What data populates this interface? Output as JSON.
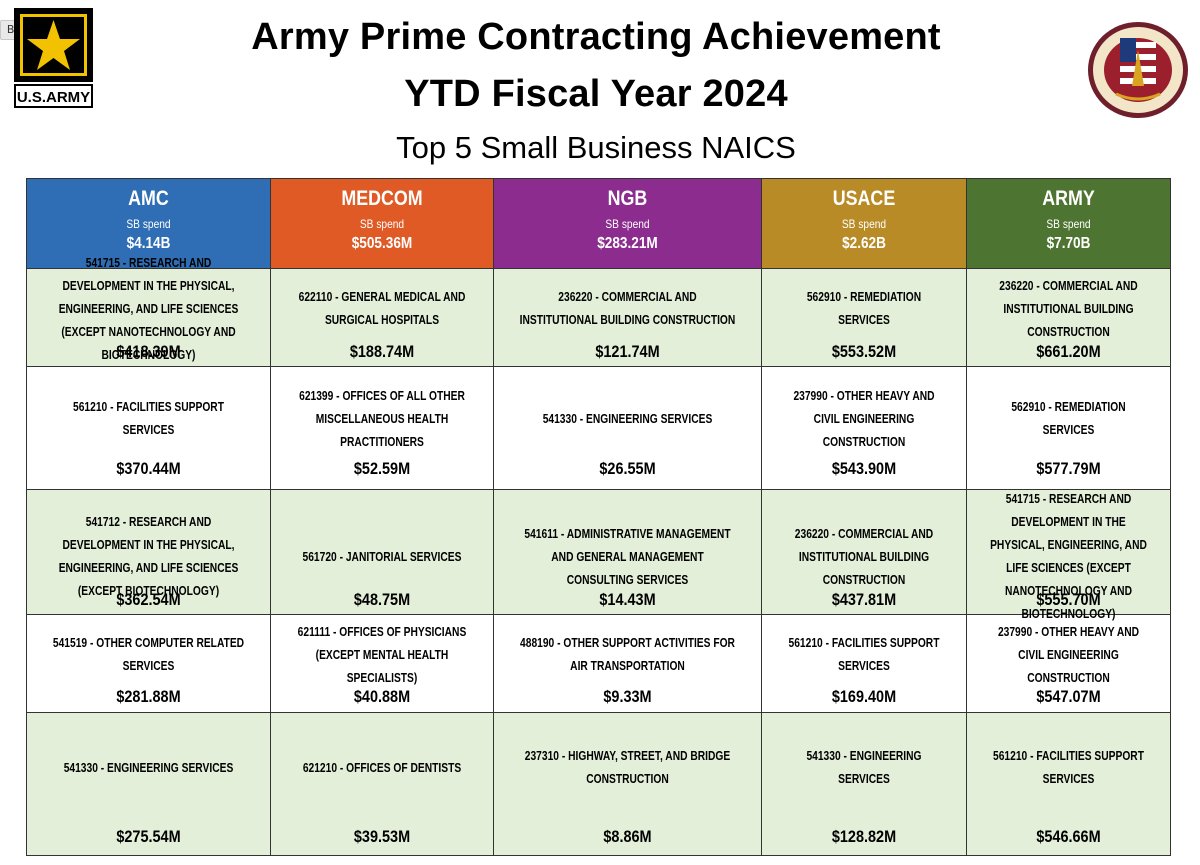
{
  "tooltip": "Bold",
  "logo": {
    "text": "U.S.ARMY",
    "seal_text": "DEPARTMENT OF THE ARMY · SMALL BUSINESS PROGRAMS"
  },
  "title_line1": "Army Prime Contracting Achievement",
  "title_line2": "YTD Fiscal Year 2024",
  "subtitle": "Top 5 Small Business NAICS",
  "colors": {
    "AMC": "#2f6eb5",
    "MEDCOM": "#e05a26",
    "NGB": "#8b2c8e",
    "USACE": "#b98b27",
    "ARMY": "#4e7431",
    "green_row": "#e3efd9"
  },
  "columns": [
    {
      "name": "AMC",
      "label": "SB spend",
      "amount": "$4.14B"
    },
    {
      "name": "MEDCOM",
      "label": "SB spend",
      "amount": "$505.36M"
    },
    {
      "name": "NGB",
      "label": "SB spend",
      "amount": "$283.21M"
    },
    {
      "name": "USACE",
      "label": "SB spend",
      "amount": "$2.62B"
    },
    {
      "name": "ARMY",
      "label": "SB spend",
      "amount": "$7.70B"
    }
  ],
  "rows": [
    [
      {
        "naics": "541715 - RESEARCH AND DEVELOPMENT IN THE PHYSICAL, ENGINEERING, AND LIFE SCIENCES (EXCEPT NANOTECHNOLOGY AND BIOTECHNOLOGY)",
        "amount": "$418.39M"
      },
      {
        "naics": "622110 - GENERAL MEDICAL AND SURGICAL HOSPITALS",
        "amount": "$188.74M"
      },
      {
        "naics": "236220 - COMMERCIAL AND INSTITUTIONAL BUILDING CONSTRUCTION",
        "amount": "$121.74M"
      },
      {
        "naics": "562910 - REMEDIATION SERVICES",
        "amount": "$553.52M"
      },
      {
        "naics": "236220 - COMMERCIAL AND INSTITUTIONAL BUILDING CONSTRUCTION",
        "amount": "$661.20M"
      }
    ],
    [
      {
        "naics": "561210 - FACILITIES SUPPORT SERVICES",
        "amount": "$370.44M"
      },
      {
        "naics": "621399 - OFFICES OF ALL OTHER MISCELLANEOUS HEALTH PRACTITIONERS",
        "amount": "$52.59M"
      },
      {
        "naics": "541330 - ENGINEERING SERVICES",
        "amount": "$26.55M"
      },
      {
        "naics": "237990 - OTHER HEAVY AND CIVIL ENGINEERING CONSTRUCTION",
        "amount": "$543.90M"
      },
      {
        "naics": "562910 - REMEDIATION SERVICES",
        "amount": "$577.79M"
      }
    ],
    [
      {
        "naics": "541712 - RESEARCH AND DEVELOPMENT IN THE PHYSICAL, ENGINEERING, AND LIFE SCIENCES (EXCEPT BIOTECHNOLOGY)",
        "amount": "$362.54M"
      },
      {
        "naics": "561720 - JANITORIAL SERVICES",
        "amount": "$48.75M"
      },
      {
        "naics": "541611 - ADMINISTRATIVE MANAGEMENT AND GENERAL MANAGEMENT CONSULTING SERVICES",
        "amount": "$14.43M"
      },
      {
        "naics": "236220 - COMMERCIAL AND INSTITUTIONAL BUILDING CONSTRUCTION",
        "amount": "$437.81M"
      },
      {
        "naics": "541715 - RESEARCH AND DEVELOPMENT IN THE PHYSICAL, ENGINEERING, AND LIFE SCIENCES (EXCEPT NANOTECHNOLOGY AND BIOTECHNOLOGY)",
        "amount": "$555.70M"
      }
    ],
    [
      {
        "naics": "541519 - OTHER COMPUTER RELATED SERVICES",
        "amount": "$281.88M"
      },
      {
        "naics": "621111 - OFFICES OF PHYSICIANS (EXCEPT MENTAL HEALTH SPECIALISTS)",
        "amount": "$40.88M"
      },
      {
        "naics": "488190 - OTHER SUPPORT ACTIVITIES FOR AIR TRANSPORTATION",
        "amount": "$9.33M"
      },
      {
        "naics": "561210 - FACILITIES SUPPORT SERVICES",
        "amount": "$169.40M"
      },
      {
        "naics": "237990 - OTHER HEAVY AND CIVIL ENGINEERING CONSTRUCTION",
        "amount": "$547.07M"
      }
    ],
    [
      {
        "naics": "541330 - ENGINEERING SERVICES",
        "amount": "$275.54M"
      },
      {
        "naics": "621210 - OFFICES OF DENTISTS",
        "amount": "$39.53M"
      },
      {
        "naics": "237310 - HIGHWAY, STREET, AND BRIDGE CONSTRUCTION",
        "amount": "$8.86M"
      },
      {
        "naics": "541330 - ENGINEERING SERVICES",
        "amount": "$128.82M"
      },
      {
        "naics": "561210 - FACILITIES SUPPORT SERVICES",
        "amount": "$546.66M"
      }
    ]
  ]
}
